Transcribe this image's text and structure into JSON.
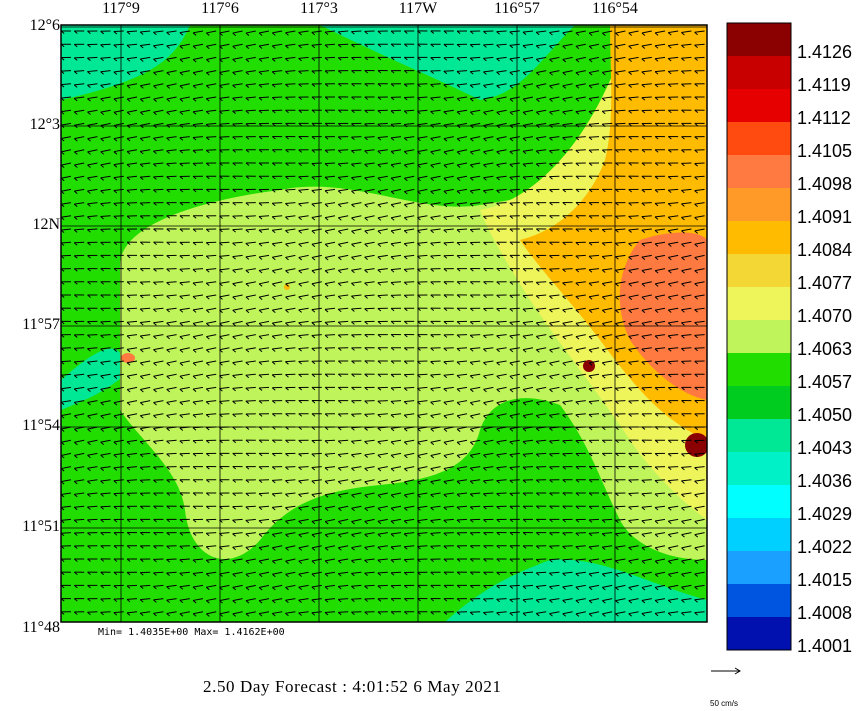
{
  "map": {
    "lon_labels": [
      "117°9",
      "117°6",
      "117°3",
      "117W",
      "116°57",
      "116°54"
    ],
    "lat_labels": [
      "12°6",
      "12°3",
      "12N",
      "11°57",
      "11°54",
      "11°51",
      "11°48"
    ]
  },
  "colorbar": {
    "labels": [
      "1.4126",
      "1.4119",
      "1.4112",
      "1.4105",
      "1.4098",
      "1.4091",
      "1.4084",
      "1.4077",
      "1.4070",
      "1.4063",
      "1.4057",
      "1.4050",
      "1.4043",
      "1.4036",
      "1.4029",
      "1.4022",
      "1.4015",
      "1.4008",
      "1.4001"
    ],
    "colors": [
      "#8b0000",
      "#c80000",
      "#e60000",
      "#ff4a10",
      "#ff7a40",
      "#ff9a28",
      "#ffbb00",
      "#f3d835",
      "#eef55a",
      "#bff55a",
      "#22dd00",
      "#00cc20",
      "#00e896",
      "#00f0c8",
      "#00ffff",
      "#00d0ff",
      "#1aa0ff",
      "#0055e0",
      "#0011b0"
    ]
  },
  "stats": {
    "min_max": "Min= 1.4035E+00   Max= 1.4162E+00"
  },
  "title": {
    "forecast": "2.50 Day Forecast :  4:01:52   6 May 2021"
  },
  "legend": {
    "scale_label": "50 cm/s"
  }
}
